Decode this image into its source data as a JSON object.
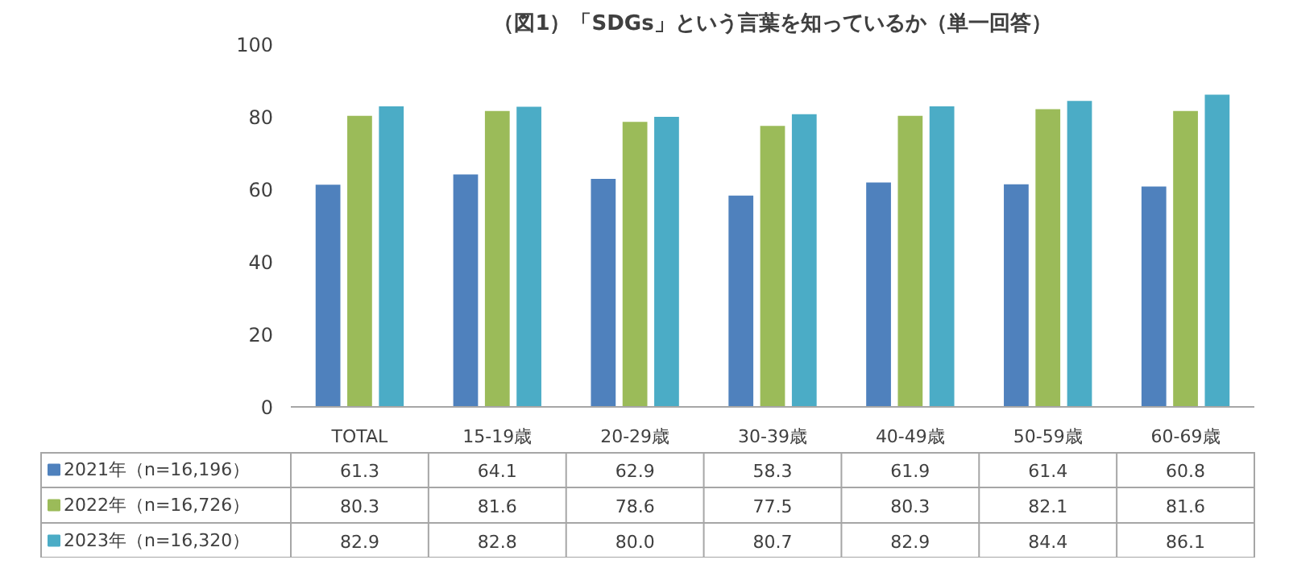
{
  "chart_data": {
    "type": "bar",
    "title": "（図1）「SDGs」という言葉を知っているか（単一回答）",
    "categories": [
      "TOTAL",
      "15-19歳",
      "20-29歳",
      "30-39歳",
      "40-49歳",
      "50-59歳",
      "60-69歳"
    ],
    "series": [
      {
        "name": "2021年（n=16,196）",
        "color": "#4f81bd",
        "values": [
          61.3,
          64.1,
          62.9,
          58.3,
          61.9,
          61.4,
          60.8
        ],
        "value_labels": [
          "61.3",
          "64.1",
          "62.9",
          "58.3",
          "61.9",
          "61.4",
          "60.8"
        ]
      },
      {
        "name": "2022年（n=16,726）",
        "color": "#9bbb59",
        "values": [
          80.3,
          81.6,
          78.6,
          77.5,
          80.3,
          82.1,
          81.6
        ],
        "value_labels": [
          "80.3",
          "81.6",
          "78.6",
          "77.5",
          "80.3",
          "82.1",
          "81.6"
        ]
      },
      {
        "name": "2023年（n=16,320）",
        "color": "#4bacc6",
        "values": [
          82.9,
          82.8,
          80.0,
          80.7,
          82.9,
          84.4,
          86.1
        ],
        "value_labels": [
          "82.9",
          "82.8",
          "80.0",
          "80.7",
          "82.9",
          "84.4",
          "86.1"
        ]
      }
    ],
    "ylim": [
      0,
      100
    ],
    "yticks": [
      0,
      20,
      40,
      60,
      80,
      100
    ],
    "grid": false,
    "legend": "bottom"
  }
}
